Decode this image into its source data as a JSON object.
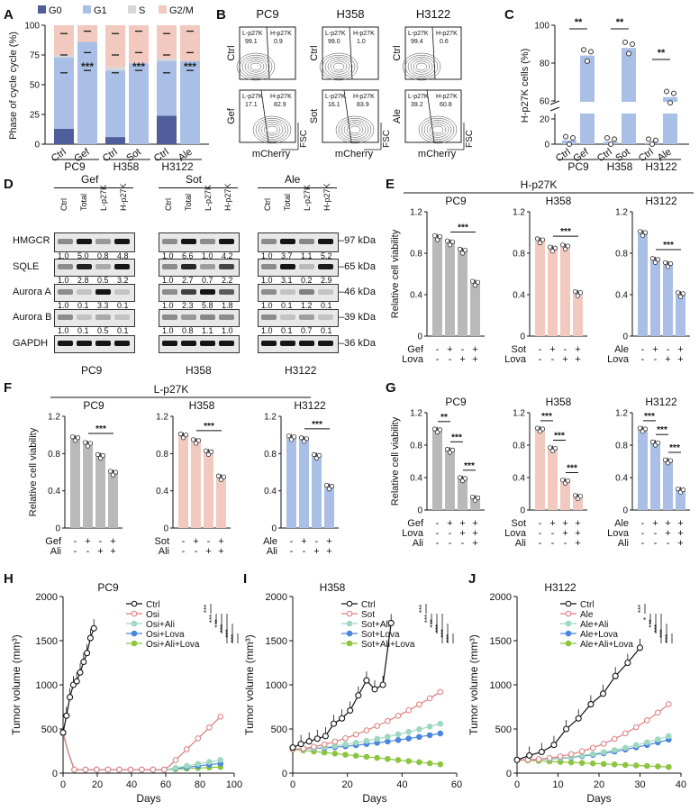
{
  "panel_letters": [
    "A",
    "B",
    "C",
    "D",
    "E",
    "F",
    "G",
    "H",
    "I",
    "J"
  ],
  "A": {
    "legend": [
      "G0",
      "G1",
      "S",
      "G2/M"
    ],
    "colors": {
      "G0": "#4f5d9b",
      "G1": "#aabfe6",
      "S": "#d7d7d7",
      "G2/M": "#f2c9be"
    },
    "ylabel": "Phase of cycle cycle (%)",
    "yticks": [
      "0",
      "25",
      "50",
      "75",
      "100"
    ],
    "xticks": [
      "Ctrl",
      "Gef",
      "Ctrl",
      "Sot",
      "Ctrl",
      "Ale"
    ],
    "groups": [
      "PC9",
      "H358",
      "H3122"
    ],
    "sig": [
      "***",
      "***",
      "***"
    ],
    "bars": [
      {
        "G0": 13,
        "G1": 60,
        "S": 2,
        "G2/M": 25
      },
      {
        "G0": 0,
        "G1": 86,
        "S": 0,
        "G2/M": 14
      },
      {
        "G0": 6,
        "G1": 56,
        "S": 3,
        "G2/M": 35
      },
      {
        "G0": 0,
        "G1": 68,
        "S": 0,
        "G2/M": 32
      },
      {
        "G0": 24,
        "G1": 46,
        "S": 2,
        "G2/M": 28
      },
      {
        "G0": 0,
        "G1": 70,
        "S": 0,
        "G2/M": 30
      }
    ]
  },
  "B": {
    "cols": [
      "PC9",
      "H358",
      "H3122"
    ],
    "rows": [
      "Ctrl",
      "Gef"
    ],
    "rows2": [
      "Ctrl",
      "Sot"
    ],
    "rows3": [
      "Ctrl",
      "Ale"
    ],
    "gate_left": "L-p27K",
    "gate_right": "H-p27K",
    "values": [
      [
        "99.1",
        "0.9"
      ],
      [
        "99.0",
        "1.0"
      ],
      [
        "99.4",
        "0.6"
      ],
      [
        "17.1",
        "82.9"
      ],
      [
        "16.1",
        "83.9"
      ],
      [
        "39.2",
        "60.8"
      ]
    ],
    "xlabel": "mCherry",
    "ylabel": "FSC"
  },
  "C": {
    "ylabel": "H-p27K cells (%)",
    "yticks": [
      "0",
      "20",
      "60",
      "80",
      "100"
    ],
    "xticks": [
      "Ctrl",
      "Gef",
      "Ctrl",
      "Sot",
      "Ctrl",
      "Ale"
    ],
    "groups": [
      "PC9",
      "H358",
      "H3122"
    ],
    "sig": [
      "**",
      "**",
      "**"
    ],
    "values": [
      3,
      84,
      2,
      88,
      1,
      62
    ]
  },
  "D": {
    "treatments": [
      "Gef",
      "Sot",
      "Ale"
    ],
    "lanes": [
      "Ctrl",
      "Total",
      "L-p27K",
      "H-p27K"
    ],
    "proteins": [
      "HMGCR",
      "SQLE",
      "Aurora A",
      "Aurora B",
      "GAPDH"
    ],
    "kda": [
      "97 kDa",
      "65 kDa",
      "46 kDa",
      "39 kDa",
      "36 kDa"
    ],
    "cells": [
      "PC9",
      "H358",
      "H3122"
    ],
    "quant": [
      [
        [
          "1.0",
          "5.0",
          "0.8",
          "4.8"
        ],
        [
          "1.0",
          "6.6",
          "1.0",
          "4.2"
        ],
        [
          "1.0",
          "3.7",
          "1.1",
          "5.2"
        ]
      ],
      [
        [
          "1.0",
          "2.8",
          "0.5",
          "3.2"
        ],
        [
          "1.0",
          "2.7",
          "0.7",
          "2.2"
        ],
        [
          "1.0",
          "3.1",
          "0.2",
          "2.9"
        ]
      ],
      [
        [
          "1.0",
          "0.1",
          "3.3",
          "0.1"
        ],
        [
          "1.0",
          "2.3",
          "5.8",
          "1.8"
        ],
        [
          "1.0",
          "0.1",
          "1.2",
          "0.1"
        ]
      ],
      [
        [
          "1.0",
          "0.1",
          "0.5",
          "0.1"
        ],
        [
          "1.0",
          "0.8",
          "1.1",
          "1.0"
        ],
        [
          "1.0",
          "0.1",
          "0.7",
          "0.1"
        ]
      ]
    ]
  },
  "viability_ylabel": "Relative cell viability",
  "E": {
    "title": "H-p27K",
    "panels": [
      {
        "name": "PC9",
        "color": "#b9b9b9",
        "values": [
          0.95,
          0.9,
          0.82,
          0.51
        ],
        "rows": [
          [
            "Gef",
            "-",
            "+",
            "-",
            "+"
          ],
          [
            "Lova",
            "-",
            "-",
            "+",
            "+"
          ]
        ],
        "sig": "***"
      },
      {
        "name": "H358",
        "color": "#f2c9be",
        "values": [
          0.92,
          0.84,
          0.86,
          0.41
        ],
        "rows": [
          [
            "Sot",
            "-",
            "+",
            "-",
            "+"
          ],
          [
            "Lova",
            "-",
            "-",
            "+",
            "+"
          ]
        ],
        "sig": "***"
      },
      {
        "name": "H3122",
        "color": "#aabfe6",
        "values": [
          0.99,
          0.73,
          0.69,
          0.4
        ],
        "rows": [
          [
            "Ale",
            "-",
            "+",
            "-",
            "+"
          ],
          [
            "Lova",
            "-",
            "-",
            "+",
            "+"
          ]
        ],
        "sig": "***"
      }
    ],
    "yticks": [
      "0",
      "0.4",
      "0.8",
      "1.2"
    ]
  },
  "F": {
    "title": "L-p27K",
    "panels": [
      {
        "name": "PC9",
        "color": "#b9b9b9",
        "values": [
          0.96,
          0.9,
          0.77,
          0.59
        ],
        "rows": [
          [
            "Gef",
            "-",
            "+",
            "-",
            "+"
          ],
          [
            "Ali",
            "-",
            "-",
            "+",
            "+"
          ]
        ],
        "sig": "***"
      },
      {
        "name": "H358",
        "color": "#f2c9be",
        "values": [
          0.99,
          0.93,
          0.81,
          0.54
        ],
        "rows": [
          [
            "Sot",
            "-",
            "+",
            "-",
            "+"
          ],
          [
            "Ali",
            "-",
            "-",
            "+",
            "+"
          ]
        ],
        "sig": "***"
      },
      {
        "name": "H3122",
        "color": "#aabfe6",
        "values": [
          0.97,
          0.95,
          0.77,
          0.44
        ],
        "rows": [
          [
            "Ale",
            "-",
            "+",
            "-",
            "+"
          ],
          [
            "Ali",
            "-",
            "-",
            "+",
            "+"
          ]
        ],
        "sig": "***"
      }
    ],
    "yticks": [
      "0",
      "0.4",
      "0.8",
      "1.2"
    ]
  },
  "G": {
    "panels": [
      {
        "name": "PC9",
        "color": "#b9b9b9",
        "values": [
          0.98,
          0.73,
          0.38,
          0.14
        ],
        "rows": [
          [
            "Gef",
            "-",
            "+",
            "+",
            "+"
          ],
          [
            "Lova",
            "-",
            "-",
            "+",
            "+"
          ],
          [
            "Ali",
            "-",
            "-",
            "-",
            "+"
          ]
        ],
        "sig": [
          "**",
          "***",
          "***"
        ]
      },
      {
        "name": "H358",
        "color": "#f2c9be",
        "values": [
          0.99,
          0.75,
          0.35,
          0.16
        ],
        "rows": [
          [
            "Sot",
            "-",
            "+",
            "+",
            "+"
          ],
          [
            "Lova",
            "-",
            "-",
            "+",
            "+"
          ],
          [
            "Ali",
            "-",
            "-",
            "-",
            "+"
          ]
        ],
        "sig": [
          "***",
          "***",
          "***"
        ]
      },
      {
        "name": "H3122",
        "color": "#aabfe6",
        "values": [
          0.99,
          0.82,
          0.6,
          0.24
        ],
        "rows": [
          [
            "Ale",
            "-",
            "+",
            "+",
            "+"
          ],
          [
            "Lova",
            "-",
            "-",
            "+",
            "+"
          ],
          [
            "Ali",
            "-",
            "-",
            "-",
            "+"
          ]
        ],
        "sig": [
          "***",
          "***",
          "***"
        ]
      }
    ],
    "yticks": [
      "0",
      "0.4",
      "0.8",
      "1.2"
    ]
  },
  "tumor_ylabel": "Tumor volume (mm³)",
  "tumor_xlabel": "Days",
  "H": {
    "title": "PC9",
    "legend": [
      "Ctrl",
      "Osi",
      "Osi+Ali",
      "Osi+Lova",
      "Osi+Ali+Lova"
    ],
    "sig": [
      "***",
      "***",
      "***",
      "***",
      "***",
      "***"
    ],
    "xticks": [
      "0",
      "20",
      "40",
      "60",
      "80",
      "100"
    ],
    "yticks": [
      "0",
      "500",
      "1000",
      "1500",
      "2000"
    ],
    "ctrl": [
      [
        0,
        460
      ],
      [
        2,
        650
      ],
      [
        4,
        860
      ],
      [
        6,
        1000
      ],
      [
        8,
        1040
      ],
      [
        10,
        1140
      ],
      [
        12,
        1260
      ],
      [
        14,
        1360
      ],
      [
        16,
        1530
      ],
      [
        18,
        1640
      ]
    ],
    "treat_end": [
      640,
      150,
      110,
      70
    ]
  },
  "I": {
    "title": "H358",
    "legend": [
      "Ctrl",
      "Sot",
      "Sot+Ali",
      "Sot+Lova",
      "Sot+Ali+Lova"
    ],
    "sig": [
      "***",
      "***",
      "***",
      "***",
      "***",
      "***"
    ],
    "xticks": [
      "0",
      "20",
      "40",
      "60"
    ],
    "yticks": [
      "0",
      "500",
      "1000",
      "1500",
      "2000"
    ],
    "ctrl": [
      [
        0,
        290
      ],
      [
        3,
        330
      ],
      [
        6,
        360
      ],
      [
        9,
        390
      ],
      [
        12,
        420
      ],
      [
        15,
        560
      ],
      [
        18,
        620
      ],
      [
        21,
        710
      ],
      [
        24,
        880
      ],
      [
        27,
        1050
      ],
      [
        30,
        950
      ],
      [
        33,
        1000
      ],
      [
        36,
        1700
      ]
    ],
    "treat_end": [
      920,
      560,
      450,
      100
    ]
  },
  "J": {
    "title": "H3122",
    "legend": [
      "Ctrl",
      "Ale",
      "Ale+Ali",
      "Ale+Lova",
      "Ale+Ali+Lova"
    ],
    "sig": [
      "***",
      "*",
      "***",
      "***",
      "***",
      "***"
    ],
    "xticks": [
      "0",
      "10",
      "20",
      "30",
      "40"
    ],
    "yticks": [
      "0",
      "500",
      "1000",
      "1500",
      "2000"
    ],
    "ctrl": [
      [
        0,
        150
      ],
      [
        3,
        200
      ],
      [
        6,
        240
      ],
      [
        9,
        320
      ],
      [
        12,
        500
      ],
      [
        15,
        620
      ],
      [
        18,
        780
      ],
      [
        21,
        900
      ],
      [
        24,
        1100
      ],
      [
        27,
        1250
      ],
      [
        30,
        1420
      ]
    ],
    "treat_end": [
      780,
      420,
      380,
      70
    ]
  }
}
